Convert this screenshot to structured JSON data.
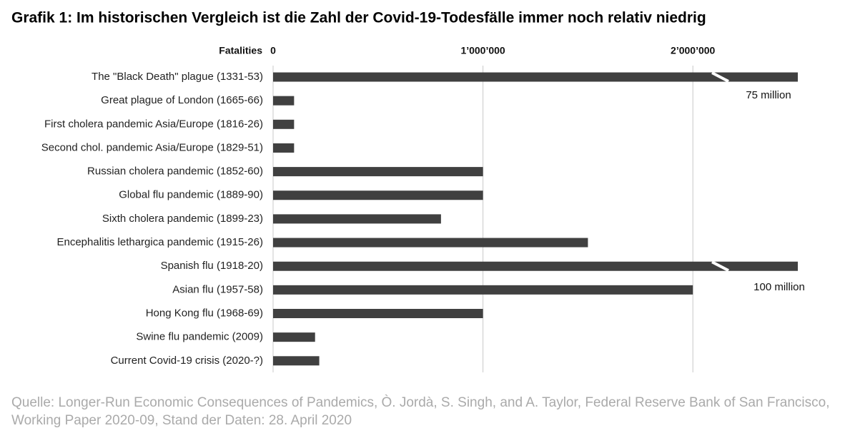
{
  "chart_data": {
    "type": "bar",
    "orientation": "horizontal",
    "title": "Grafik 1: Im historischen Vergleich ist die Zahl der Covid-19-Todesfälle immer noch relativ niedrig",
    "x_label": "Fatalities",
    "categories": [
      "The \"Black Death\" plague (1331-53)",
      "Great plague of London (1665-66)",
      "First cholera pandemic Asia/Europe (1816-26)",
      "Second chol. pandemic Asia/Europe (1829-51)",
      "Russian cholera pandemic (1852-60)",
      "Global flu pandemic (1889-90)",
      "Sixth cholera pandemic (1899-23)",
      "Encephalitis lethargica pandemic (1915-26)",
      "Spanish flu (1918-20)",
      "Asian flu (1957-58)",
      "Hong Kong flu (1968-69)",
      "Swine flu pandemic (2009)",
      "Current Covid-19 crisis (2020-?)"
    ],
    "values": [
      75000000,
      100000,
      100000,
      100000,
      1000000,
      1000000,
      800000,
      1500000,
      100000000,
      2000000,
      1000000,
      200000,
      220000
    ],
    "value_labels": [
      "75 million",
      null,
      null,
      null,
      null,
      null,
      null,
      null,
      "100 million",
      null,
      null,
      null,
      null
    ],
    "color": "#404040",
    "xlim": [
      0,
      2500000
    ],
    "xticks": [
      0,
      {
        "value": 1000000,
        "label": "1’000’000"
      },
      {
        "value": 2000000,
        "label": "2’000’000"
      }
    ],
    "grid": true,
    "source": "Quelle: Longer-Run Economic Consequences of Pandemics, Ò. Jordà, S. Singh, and A. Taylor, Federal Reserve Bank of San Francisco, Working Paper 2020-09, Stand der Daten: 28. April 2020"
  }
}
